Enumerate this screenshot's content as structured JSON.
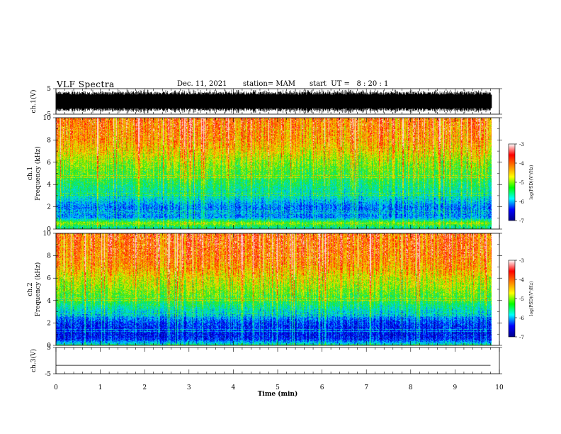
{
  "header": {
    "title": "VLF Spectra",
    "date": "Dec. 11, 2021",
    "station": "station= MAM",
    "start": "start  UT =   8 : 20 : 1"
  },
  "chart_data": [
    {
      "type": "line",
      "panel": "ch.1 waveform",
      "ylabel": "ch.1(V)",
      "ylim": [
        -5,
        5
      ],
      "yticks": [
        "5",
        "-5"
      ],
      "trace": "dense noisy waveform spanning roughly -4 to +4 V",
      "color": "#000000"
    },
    {
      "type": "heatmap",
      "panel": "ch.1 spectrogram",
      "ylabel": "ch.1\nFrequency (kHz)",
      "ylim": [
        0,
        10
      ],
      "yticks": [
        "0",
        "2",
        "4",
        "6",
        "8",
        "10"
      ],
      "colorbar": {
        "label": "log(PSD)(V²/Hz)",
        "range": [
          -7,
          -3
        ],
        "ticks": [
          "-3",
          "-4",
          "-5",
          "-6",
          "-7"
        ],
        "colors": [
          "#000088",
          "#0000ff",
          "#00ffff",
          "#00ff00",
          "#ffff00",
          "#ff8000",
          "#ff0000",
          "#ffffff"
        ]
      },
      "profile_khz": [
        [
          0,
          -5.6
        ],
        [
          0.5,
          -4.6
        ],
        [
          1,
          -6.0
        ],
        [
          2,
          -6.1
        ],
        [
          2.8,
          -5.6
        ],
        [
          4,
          -5.2
        ],
        [
          5,
          -4.9
        ],
        [
          6,
          -4.6
        ],
        [
          7,
          -4.2
        ],
        [
          8,
          -3.9
        ],
        [
          10,
          -3.7
        ]
      ]
    },
    {
      "type": "heatmap",
      "panel": "ch.2 spectrogram",
      "ylabel": "ch.2\nFrequency (kHz)",
      "ylim": [
        0,
        10
      ],
      "yticks": [
        "0",
        "2",
        "4",
        "6",
        "8",
        "10"
      ],
      "colorbar": {
        "label": "log(PSD)(V²/Hz)",
        "range": [
          -7,
          -3
        ],
        "ticks": [
          "-3",
          "-4",
          "-5",
          "-6",
          "-7"
        ],
        "colors": [
          "#000088",
          "#0000ff",
          "#00ffff",
          "#00ff00",
          "#ffff00",
          "#ff8000",
          "#ff0000",
          "#ffffff"
        ]
      },
      "profile_khz": [
        [
          0,
          -5.4
        ],
        [
          0.5,
          -6.4
        ],
        [
          1,
          -6.5
        ],
        [
          2,
          -6.3
        ],
        [
          3,
          -5.6
        ],
        [
          4,
          -5.0
        ],
        [
          5,
          -4.6
        ],
        [
          6,
          -4.3
        ],
        [
          7,
          -3.9
        ],
        [
          8,
          -3.7
        ],
        [
          10,
          -3.6
        ]
      ]
    },
    {
      "type": "line",
      "panel": "ch.3 waveform",
      "ylabel": "ch.3(V)",
      "ylim": [
        -5,
        5
      ],
      "yticks": [
        "5",
        "-5"
      ],
      "values": [
        [
          0,
          -1.8
        ],
        [
          9.8,
          -1.8
        ]
      ],
      "color": "#000000"
    }
  ],
  "xaxis": {
    "label": "Time (min)",
    "xlim": [
      0,
      10
    ],
    "ticks": [
      "0",
      "1",
      "2",
      "3",
      "4",
      "5",
      "6",
      "7",
      "8",
      "9",
      "10"
    ],
    "data_end_min": 9.83
  }
}
